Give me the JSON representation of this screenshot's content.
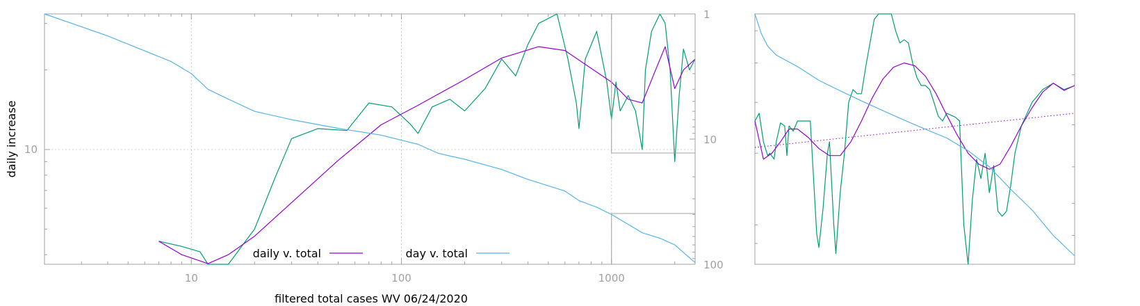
{
  "chart_data": [
    {
      "type": "line",
      "xlabel": "filtered total cases WV 06/24/2020",
      "ylabel": "daily increase",
      "x_scale": "log",
      "x_ticks": [
        "10",
        "100",
        "1000"
      ],
      "x_tick_values": [
        10,
        100,
        1000
      ],
      "xlim": [
        2,
        2500
      ],
      "y_left_scale": "log",
      "y_left_ticks": [
        "10"
      ],
      "y_left_tick_values": [
        10
      ],
      "y_right_scale": "log",
      "y_right_ticks": [
        "1",
        "10",
        "100"
      ],
      "y_right_tick_values": [
        1,
        10,
        100
      ],
      "grid": true,
      "legend_position": "bottom-center",
      "legend": [
        "daily v. total",
        "day v. total"
      ],
      "series": [
        {
          "name": "daily v. total",
          "color": "#9400d3",
          "x": [
            7,
            9,
            12,
            15,
            20,
            30,
            50,
            80,
            120,
            200,
            300,
            450,
            600,
            800,
            1000,
            1200,
            1400,
            1600,
            1800,
            2000,
            2200,
            2500
          ],
          "y": [
            4.5,
            4.0,
            3.7,
            4.0,
            4.7,
            6.3,
            9.1,
            12.4,
            14.7,
            18.4,
            22.2,
            24.5,
            23.7,
            20.3,
            18.0,
            15.5,
            15.0,
            19.5,
            24.5,
            17.0,
            20.0,
            22.0
          ]
        },
        {
          "name": "",
          "color": "#009e73",
          "x": [
            7,
            9,
            11,
            12,
            13,
            15,
            20,
            25,
            30,
            40,
            55,
            70,
            90,
            110,
            120,
            140,
            170,
            200,
            250,
            300,
            350,
            400,
            450,
            550,
            620,
            680,
            700,
            750,
            850,
            950,
            1000,
            1050,
            1100,
            1200,
            1300,
            1400,
            1450,
            1550,
            1700,
            1800,
            1900,
            2000,
            2100,
            2200,
            2350,
            2500
          ],
          "y": [
            4.5,
            4.3,
            4.1,
            3.4,
            2.8,
            3.5,
            5.0,
            7.8,
            11.0,
            12.0,
            11.8,
            15.0,
            14.5,
            12.5,
            11.5,
            14.5,
            15.5,
            14.0,
            17.0,
            22.0,
            19.0,
            25.0,
            30.0,
            33.0,
            22.0,
            15.0,
            12.0,
            22.0,
            28.0,
            18.0,
            13.0,
            18.0,
            14.0,
            16.0,
            14.0,
            10.0,
            20.0,
            28.0,
            33.0,
            30.0,
            20.0,
            9.0,
            16.0,
            24.0,
            20.0,
            22.0
          ]
        }
      ],
      "right_axis_series": [
        {
          "name": "day v. total",
          "color": "#56b4e9",
          "x": [
            2,
            4,
            8,
            10,
            12,
            15,
            20,
            30,
            50,
            80,
            120,
            150,
            200,
            300,
            400,
            600,
            700,
            850,
            1000,
            1200,
            1400,
            1700,
            2000,
            2300,
            2500
          ],
          "y": [
            1.0,
            1.5,
            2.4,
            3.0,
            4.0,
            4.8,
            6.0,
            7.0,
            8.2,
            9.3,
            11.0,
            13.0,
            14.5,
            17.5,
            21.0,
            26.0,
            31.0,
            35.0,
            40.0,
            48.0,
            56.0,
            62.0,
            70.0,
            86.0,
            97.0
          ]
        }
      ]
    },
    {
      "type": "line",
      "xlabel": "",
      "ylabel": "",
      "grid": false,
      "y_scale": "log",
      "series": [
        {
          "name": "",
          "color": "#9400d3",
          "x": [
            1000,
            1040,
            1080,
            1120,
            1160,
            1200,
            1250,
            1300,
            1350,
            1400,
            1450,
            1500,
            1550,
            1600,
            1650,
            1700,
            1750,
            1800,
            1850,
            1900,
            1950,
            2000,
            2050,
            2100,
            2150,
            2200,
            2250,
            2300,
            2350,
            2400,
            2450,
            2500
          ],
          "y": [
            18.0,
            14.5,
            15.0,
            16.0,
            17.2,
            17.2,
            16.4,
            15.4,
            14.8,
            14.8,
            16.0,
            18.0,
            20.5,
            22.8,
            24.4,
            25.0,
            24.6,
            23.2,
            21.0,
            18.6,
            16.6,
            15.0,
            14.1,
            13.7,
            14.1,
            15.6,
            17.5,
            19.4,
            21.2,
            22.3,
            21.4,
            22.0
          ]
        },
        {
          "name": "",
          "color": "#009e73",
          "x": [
            1000,
            1020,
            1040,
            1060,
            1070,
            1090,
            1100,
            1120,
            1140,
            1150,
            1160,
            1180,
            1200,
            1220,
            1260,
            1290,
            1300,
            1320,
            1340,
            1350,
            1370,
            1380,
            1400,
            1420,
            1440,
            1460,
            1480,
            1500,
            1520,
            1540,
            1560,
            1580,
            1600,
            1620,
            1640,
            1660,
            1680,
            1700,
            1720,
            1740,
            1760,
            1780,
            1800,
            1820,
            1840,
            1860,
            1880,
            1900,
            1920,
            1940,
            1960,
            1980,
            2000,
            2020,
            2040,
            2060,
            2080,
            2100,
            2120,
            2140,
            2160,
            2180,
            2200,
            2220,
            2250,
            2300,
            2350,
            2400,
            2450,
            2500
          ],
          "y": [
            18.0,
            18.8,
            16.0,
            14.8,
            15.0,
            14.5,
            16.0,
            17.8,
            17.5,
            14.8,
            17.5,
            17.0,
            18.0,
            18.0,
            18.0,
            9.5,
            8.8,
            11.0,
            15.0,
            16.0,
            10.0,
            8.5,
            12.0,
            15.0,
            20.0,
            21.5,
            21.0,
            21.0,
            24.5,
            28.0,
            32.0,
            33.0,
            33.0,
            33.0,
            33.0,
            30.0,
            28.0,
            28.5,
            28.0,
            25.0,
            23.0,
            22.0,
            22.0,
            21.5,
            20.0,
            18.5,
            18.0,
            18.8,
            18.6,
            18.4,
            18.0,
            10.0,
            8.0,
            11.5,
            14.5,
            13.0,
            15.0,
            12.0,
            14.0,
            10.8,
            10.5,
            10.8,
            12.5,
            15.0,
            17.5,
            20.0,
            21.5,
            22.3,
            21.5,
            22.0
          ]
        }
      ],
      "right_axis_series": [
        {
          "name": "",
          "color": "#56b4e9",
          "x": [
            1000,
            1030,
            1060,
            1100,
            1150,
            1200,
            1300,
            1400,
            1500,
            1600,
            1700,
            1800,
            1900,
            2000,
            2100,
            2200,
            2300,
            2400,
            2500
          ],
          "y": [
            40.0,
            43.0,
            45.0,
            46.5,
            47.5,
            48.5,
            51.0,
            53.0,
            55.0,
            57.0,
            59.0,
            61.0,
            63.0,
            66.0,
            70.0,
            76.0,
            82.0,
            90.0,
            97.0
          ]
        }
      ],
      "trend_line": {
        "color": "#9400d3",
        "style": "dotted",
        "x": [
          1000,
          2500
        ],
        "y": [
          15.5,
          18.8
        ]
      }
    }
  ]
}
